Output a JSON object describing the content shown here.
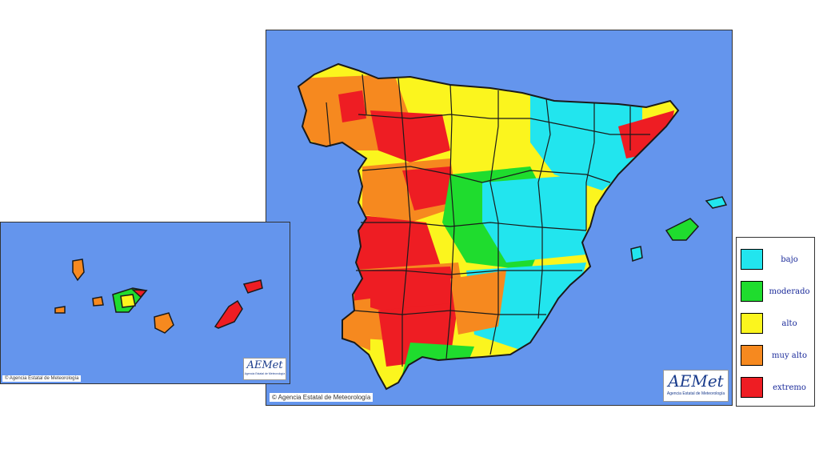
{
  "main_map": {
    "copyright": "© Agencia Estatal de Meteorología",
    "logo": {
      "mark": "AEMet",
      "subtitle": "Agencia Estatal de Meteorología"
    }
  },
  "canary_map": {
    "copyright": "© Agencia Estatal de Meteorología",
    "logo": {
      "mark": "AEMet",
      "subtitle": "Agencia Estatal de Meteorología"
    }
  },
  "legend": {
    "items": [
      {
        "label": "bajo",
        "color": "#22e5ee"
      },
      {
        "label": "moderado",
        "color": "#1fdc2e"
      },
      {
        "label": "alto",
        "color": "#fbf51e"
      },
      {
        "label": "muy alto",
        "color": "#f6891f"
      },
      {
        "label": "extremo",
        "color": "#ee1d23"
      }
    ]
  },
  "colors": {
    "sea": "#6495ed",
    "border": "#1a1a1a"
  }
}
